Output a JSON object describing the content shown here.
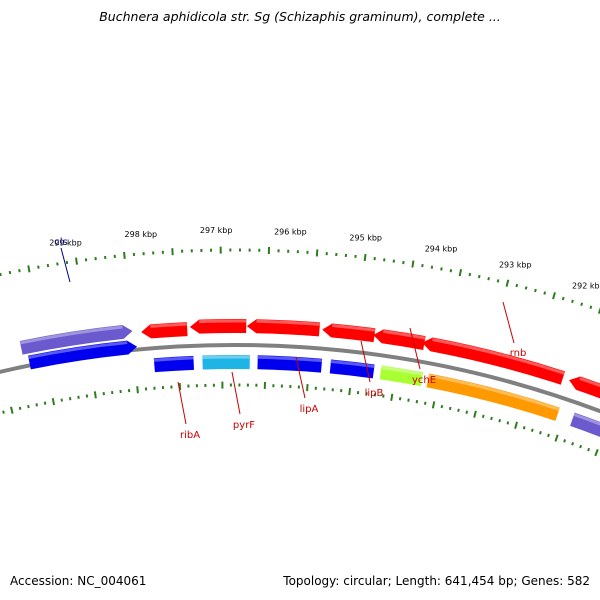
{
  "title": "Buchnera aphidicola str. Sg (Schizaphis graminum), complete ...",
  "footer": {
    "accession": "Accession: NC_004061",
    "summary": "Topology: circular; Length: 641,454 bp; Genes: 582"
  },
  "colors": {
    "backbone": "#808080",
    "ticks": "#2e7d1e",
    "label_forward": "#cc0000",
    "label_reverse": "#00008b",
    "red": "#ff0000",
    "blue": "#0000ee",
    "slate": "#6a5acd",
    "cyan": "#1eb4e6",
    "lime": "#aaff33",
    "orange": "#ff9900"
  },
  "scale_labels": [
    "292 kbp",
    "293 kbp",
    "294 kbp",
    "295 kbp",
    "296 kbp",
    "297 kbp",
    "298 kbp",
    "299 kbp"
  ],
  "genes": [
    {
      "label": "cls",
      "color": "slate"
    },
    {
      "label": "ribA",
      "color": "blue"
    },
    {
      "label": "pyrF",
      "color": "cyan"
    },
    {
      "label": "lipA",
      "color": "blue"
    },
    {
      "label": "lipB",
      "color": "blue"
    },
    {
      "label": "ychE",
      "color": "lime"
    },
    {
      "label": "rnb",
      "color": "orange"
    }
  ]
}
